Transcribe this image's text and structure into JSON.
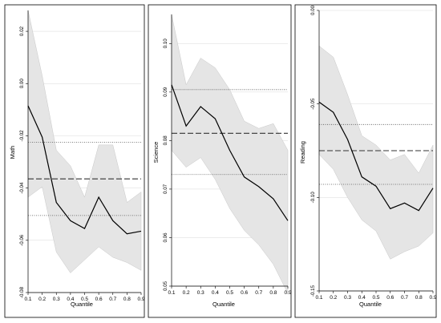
{
  "figure": {
    "background": "#ffffff",
    "band_color": "#e5e5e5",
    "line_color": "#000000",
    "ref_color": "#333333"
  },
  "chart_data": [
    {
      "type": "line",
      "ylabel": "Math",
      "xlabel": "Quantile",
      "xlim": [
        0.1,
        0.9
      ],
      "ylim": [
        -0.08,
        0.028
      ],
      "x_ticks": [
        "0.1",
        "0.2",
        "0.3",
        "0.4",
        "0.5",
        "0.6",
        "0.7",
        "0.8",
        "0.9"
      ],
      "y_ticks": [
        {
          "value": 0.02,
          "label": "0.02"
        },
        {
          "value": 0.0,
          "label": "0.00"
        },
        {
          "value": -0.02,
          "label": "-0.02"
        },
        {
          "value": -0.04,
          "label": "-0.04"
        },
        {
          "value": -0.06,
          "label": "-0.06"
        },
        {
          "value": -0.08,
          "label": "-0.08"
        }
      ],
      "grid": true,
      "x": [
        0.1,
        0.2,
        0.3,
        0.4,
        0.5,
        0.6,
        0.7,
        0.8,
        0.9
      ],
      "estimate": [
        -0.0085,
        -0.0205,
        -0.0455,
        -0.0525,
        -0.0555,
        -0.0435,
        -0.0525,
        -0.0575,
        -0.0565
      ],
      "ci_upper": [
        0.028,
        0.003,
        -0.0255,
        -0.0315,
        -0.0435,
        -0.0235,
        -0.0235,
        -0.0455,
        -0.0415
      ],
      "ci_lower": [
        -0.0435,
        -0.0395,
        -0.0645,
        -0.0725,
        -0.0675,
        -0.0625,
        -0.0665,
        -0.0685,
        -0.0715
      ],
      "ols_estimate": -0.0365,
      "ols_ci": [
        -0.0225,
        -0.0505
      ]
    },
    {
      "type": "line",
      "ylabel": "Science",
      "xlabel": "Quantile",
      "xlim": [
        0.1,
        0.9
      ],
      "ylim": [
        0.05,
        0.106
      ],
      "x_ticks": [
        "0.1",
        "0.2",
        "0.3",
        "0.4",
        "0.5",
        "0.6",
        "0.7",
        "0.8",
        "0.9"
      ],
      "y_ticks": [
        {
          "value": 0.1,
          "label": "0.10"
        },
        {
          "value": 0.09,
          "label": "0.09"
        },
        {
          "value": 0.08,
          "label": "0.08"
        },
        {
          "value": 0.07,
          "label": "0.07"
        },
        {
          "value": 0.06,
          "label": "0.06"
        },
        {
          "value": 0.05,
          "label": "0.05"
        }
      ],
      "grid": true,
      "x": [
        0.1,
        0.2,
        0.3,
        0.4,
        0.5,
        0.6,
        0.7,
        0.8,
        0.9
      ],
      "estimate": [
        0.0915,
        0.083,
        0.087,
        0.0845,
        0.078,
        0.0725,
        0.0705,
        0.068,
        0.0635
      ],
      "ci_upper": [
        0.106,
        0.0915,
        0.097,
        0.095,
        0.0905,
        0.084,
        0.0825,
        0.0835,
        0.078
      ],
      "ci_lower": [
        0.078,
        0.0745,
        0.0765,
        0.072,
        0.066,
        0.0615,
        0.0585,
        0.0545,
        0.0485
      ],
      "ols_estimate": 0.0815,
      "ols_ci": [
        0.0905,
        0.073
      ]
    },
    {
      "type": "line",
      "ylabel": "Reading",
      "xlabel": "Quantile",
      "xlim": [
        0.1,
        0.9
      ],
      "ylim": [
        -0.15,
        0.0
      ],
      "x_ticks": [
        "0.1",
        "0.2",
        "0.3",
        "0.4",
        "0.5",
        "0.6",
        "0.7",
        "0.8",
        "0.9"
      ],
      "y_ticks": [
        {
          "value": 0.0,
          "label": "0.00"
        },
        {
          "value": -0.05,
          "label": "-0.05"
        },
        {
          "value": -0.1,
          "label": "-0.10"
        },
        {
          "value": -0.15,
          "label": "-0.15"
        }
      ],
      "grid": true,
      "x": [
        0.1,
        0.2,
        0.3,
        0.4,
        0.5,
        0.6,
        0.7,
        0.8,
        0.9
      ],
      "estimate": [
        -0.049,
        -0.0545,
        -0.069,
        -0.089,
        -0.094,
        -0.106,
        -0.103,
        -0.107,
        -0.095
      ],
      "ci_upper": [
        -0.019,
        -0.025,
        -0.045,
        -0.067,
        -0.072,
        -0.08,
        -0.077,
        -0.087,
        -0.072
      ],
      "ci_lower": [
        -0.077,
        -0.085,
        -0.1,
        -0.112,
        -0.118,
        -0.133,
        -0.129,
        -0.126,
        -0.119
      ],
      "ols_estimate": -0.075,
      "ols_ci": [
        -0.061,
        -0.093
      ]
    }
  ]
}
